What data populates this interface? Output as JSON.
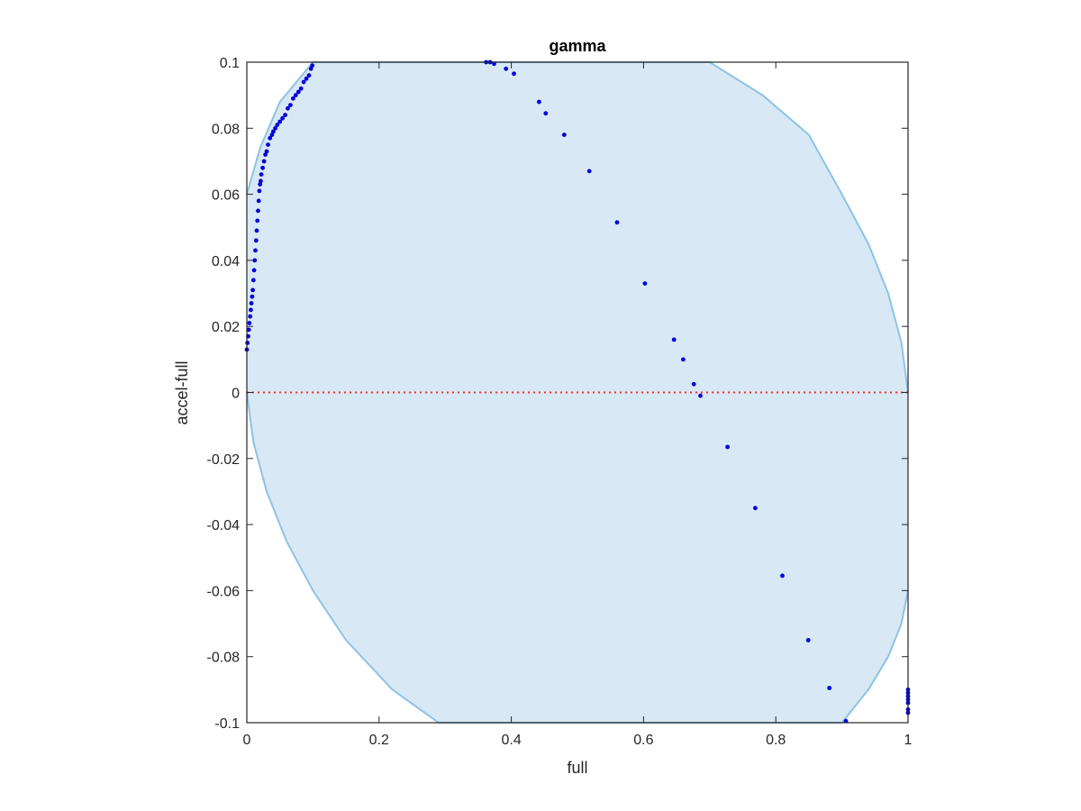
{
  "chart_data": {
    "type": "scatter",
    "title": "gamma",
    "xlabel": "full",
    "ylabel": "accel-full",
    "xlim": [
      0,
      1
    ],
    "ylim": [
      -0.1,
      0.1
    ],
    "x_ticks": [
      0,
      0.2,
      0.4,
      0.6,
      0.8,
      1
    ],
    "x_tick_labels": [
      "0",
      "0.2",
      "0.4",
      "0.6",
      "0.8",
      "1"
    ],
    "y_ticks": [
      -0.1,
      -0.08,
      -0.06,
      -0.04,
      -0.02,
      0,
      0.02,
      0.04,
      0.06,
      0.08,
      0.1
    ],
    "y_tick_labels": [
      "-0.1",
      "-0.08",
      "-0.06",
      "-0.04",
      "-0.02",
      "0",
      "0.02",
      "0.04",
      "0.06",
      "0.08",
      "0.1"
    ],
    "grid": false,
    "colors": {
      "points": "#0000dd",
      "region_fill": "#d8e8f4",
      "region_edge": "#8ec3e6",
      "zero_line": "#ff2a2a",
      "axes": "#262626"
    },
    "region": {
      "upper_boundary": [
        [
          0,
          0.06
        ],
        [
          0.02,
          0.074
        ],
        [
          0.05,
          0.088
        ],
        [
          0.1,
          0.1
        ],
        [
          0.7,
          0.1
        ],
        [
          0.78,
          0.09
        ],
        [
          0.85,
          0.078
        ],
        [
          0.9,
          0.06
        ],
        [
          0.94,
          0.045
        ],
        [
          0.97,
          0.03
        ],
        [
          0.99,
          0.015
        ],
        [
          1,
          0
        ]
      ],
      "lower_boundary": [
        [
          0,
          0
        ],
        [
          0.01,
          -0.015
        ],
        [
          0.03,
          -0.03
        ],
        [
          0.06,
          -0.045
        ],
        [
          0.1,
          -0.06
        ],
        [
          0.15,
          -0.075
        ],
        [
          0.22,
          -0.09
        ],
        [
          0.29,
          -0.1
        ],
        [
          0.9,
          -0.1
        ],
        [
          0.94,
          -0.09
        ],
        [
          0.97,
          -0.08
        ],
        [
          0.99,
          -0.07
        ],
        [
          1,
          -0.06
        ]
      ]
    },
    "reference_line": {
      "y": 0,
      "style": "dotted"
    },
    "series": [
      {
        "x": [
          0.0,
          0.001,
          0.002,
          0.003,
          0.004,
          0.005,
          0.006,
          0.007,
          0.008,
          0.009,
          0.01,
          0.011,
          0.012,
          0.013,
          0.014,
          0.015,
          0.016,
          0.017,
          0.018,
          0.019,
          0.02,
          0.021,
          0.022,
          0.024,
          0.026,
          0.028,
          0.03,
          0.032,
          0.035,
          0.038,
          0.04,
          0.043,
          0.046,
          0.05,
          0.054,
          0.058,
          0.062,
          0.066,
          0.07,
          0.074,
          0.078,
          0.082,
          0.086,
          0.09,
          0.094,
          0.097,
          0.099,
          0.362,
          0.368,
          0.374,
          0.392,
          0.404,
          0.442,
          0.452,
          0.48,
          0.518,
          0.56,
          0.602,
          0.646,
          0.66,
          0.676,
          0.686,
          0.727,
          0.769,
          0.81,
          0.849,
          0.881,
          0.906,
          1.0,
          1.0,
          1.0,
          1.0,
          1.0,
          1.0,
          1.0
        ],
        "y": [
          0.013,
          0.015,
          0.017,
          0.019,
          0.021,
          0.023,
          0.025,
          0.027,
          0.029,
          0.031,
          0.034,
          0.037,
          0.04,
          0.043,
          0.046,
          0.049,
          0.052,
          0.055,
          0.058,
          0.061,
          0.063,
          0.064,
          0.066,
          0.068,
          0.07,
          0.072,
          0.073,
          0.075,
          0.077,
          0.078,
          0.079,
          0.08,
          0.081,
          0.082,
          0.083,
          0.084,
          0.086,
          0.087,
          0.089,
          0.09,
          0.091,
          0.092,
          0.094,
          0.095,
          0.096,
          0.098,
          0.099,
          0.1,
          0.1,
          0.0995,
          0.098,
          0.0965,
          0.088,
          0.0845,
          0.078,
          0.067,
          0.0515,
          0.033,
          0.016,
          0.01,
          0.0025,
          -0.001,
          -0.0165,
          -0.035,
          -0.0555,
          -0.075,
          -0.0895,
          -0.0995,
          -0.09,
          -0.091,
          -0.092,
          -0.093,
          -0.094,
          -0.096,
          -0.097
        ]
      }
    ]
  }
}
